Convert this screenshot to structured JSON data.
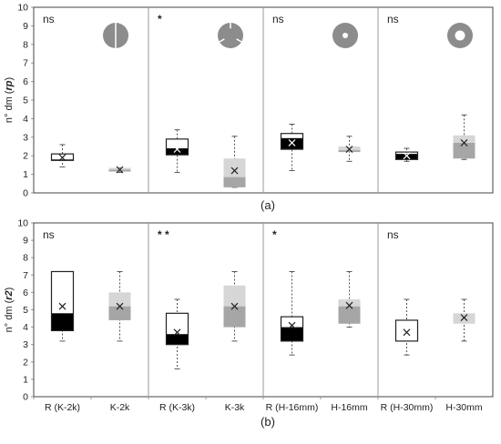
{
  "chart_data": [
    {
      "type": "boxplot",
      "caption": "(a)",
      "ylabel_prefix": "n° dm (",
      "ylabel_var": "rp",
      "ylabel_suffix": ")",
      "ylim": [
        0,
        10
      ],
      "yticks": [
        0,
        1,
        2,
        3,
        4,
        5,
        6,
        7,
        8,
        9,
        10
      ],
      "categories": [],
      "groups": [
        {
          "significance": "ns",
          "icon": "shape-k2k-icon"
        },
        {
          "significance": "*",
          "icon": "shape-k3k-icon"
        },
        {
          "significance": "ns",
          "icon": "shape-h16mm-icon"
        },
        {
          "significance": "ns",
          "icon": "shape-h30mm-icon"
        }
      ],
      "boxes": [
        {
          "style": "white-black",
          "min": 1.4,
          "q1": 1.75,
          "median": 1.8,
          "q3": 2.1,
          "max": 2.6,
          "mean": 1.9
        },
        {
          "style": "grey",
          "min": 1.1,
          "q1": 1.15,
          "median": 1.25,
          "q3": 1.35,
          "max": 1.35,
          "mean": 1.25
        },
        {
          "style": "white-black",
          "min": 1.1,
          "q1": 2.05,
          "median": 2.4,
          "q3": 2.9,
          "max": 3.4,
          "mean": 2.35
        },
        {
          "style": "grey",
          "min": 0.3,
          "q1": 0.3,
          "median": 0.85,
          "q3": 1.85,
          "max": 3.05,
          "mean": 1.2
        },
        {
          "style": "white-black",
          "min": 1.2,
          "q1": 2.35,
          "median": 2.95,
          "q3": 3.2,
          "max": 3.7,
          "mean": 2.7
        },
        {
          "style": "grey",
          "min": 1.7,
          "q1": 2.2,
          "median": 2.3,
          "q3": 2.5,
          "max": 3.05,
          "mean": 2.35
        },
        {
          "style": "white-black",
          "min": 1.7,
          "q1": 1.8,
          "median": 2.1,
          "q3": 2.2,
          "max": 2.4,
          "mean": 2.0
        },
        {
          "style": "grey",
          "min": 1.8,
          "q1": 1.85,
          "median": 2.7,
          "q3": 3.1,
          "max": 4.2,
          "mean": 2.7
        }
      ]
    },
    {
      "type": "boxplot",
      "caption": "(b)",
      "ylabel_prefix": "n° dm (",
      "ylabel_var": "r2",
      "ylabel_suffix": ")",
      "ylim": [
        0,
        10
      ],
      "yticks": [
        0,
        1,
        2,
        3,
        4,
        5,
        6,
        7,
        8,
        9,
        10
      ],
      "categories": [
        "R (K-2k)",
        "K-2k",
        "R (K-3k)",
        "K-3k",
        "R (H-16mm)",
        "H-16mm",
        "R (H-30mm)",
        "H-30mm"
      ],
      "groups": [
        {
          "significance": "ns"
        },
        {
          "significance": "* *"
        },
        {
          "significance": "*"
        },
        {
          "significance": "ns"
        }
      ],
      "boxes": [
        {
          "style": "white-black",
          "min": 3.2,
          "q1": 3.8,
          "median": 4.8,
          "q3": 7.2,
          "max": 7.2,
          "mean": 5.2
        },
        {
          "style": "grey",
          "min": 3.2,
          "q1": 4.4,
          "median": 5.2,
          "q3": 6.0,
          "max": 7.2,
          "mean": 5.2
        },
        {
          "style": "white-black",
          "min": 1.6,
          "q1": 3.0,
          "median": 3.6,
          "q3": 4.8,
          "max": 5.6,
          "mean": 3.7
        },
        {
          "style": "grey",
          "min": 3.2,
          "q1": 4.0,
          "median": 5.2,
          "q3": 6.4,
          "max": 7.2,
          "mean": 5.2
        },
        {
          "style": "white-black",
          "min": 2.4,
          "q1": 3.2,
          "median": 4.0,
          "q3": 4.6,
          "max": 7.2,
          "mean": 4.1
        },
        {
          "style": "grey",
          "min": 4.0,
          "q1": 4.2,
          "median": 5.2,
          "q3": 5.6,
          "max": 7.2,
          "mean": 5.25
        },
        {
          "style": "white",
          "min": 2.4,
          "q1": 3.2,
          "median": 3.2,
          "q3": 4.4,
          "max": 5.6,
          "mean": 3.7
        },
        {
          "style": "grey",
          "min": 3.2,
          "q1": 4.2,
          "median": 4.2,
          "q3": 4.8,
          "max": 5.6,
          "mean": 4.55
        }
      ]
    }
  ]
}
